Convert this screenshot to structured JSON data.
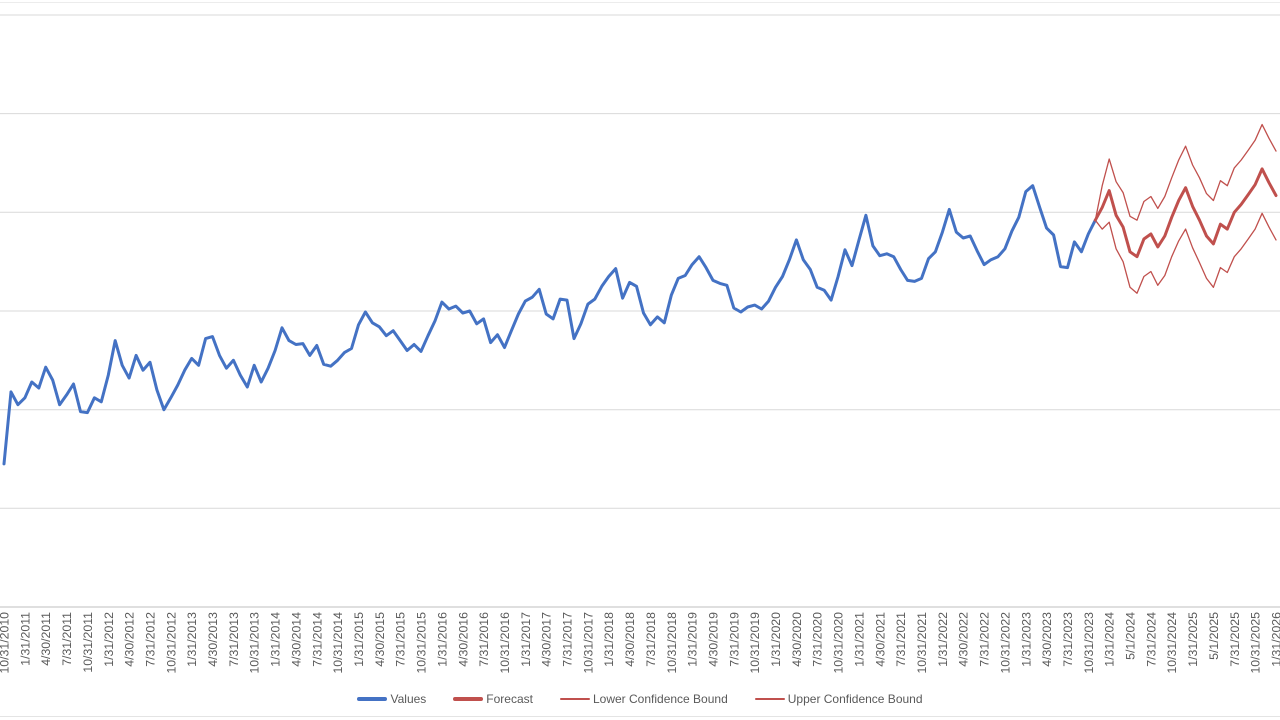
{
  "chart_data": {
    "type": "line",
    "title": "",
    "xlabel": "",
    "ylabel": "",
    "grid": true,
    "legend_position": "bottom",
    "x_axis": {
      "start": "10/31/2010",
      "end": "1/31/2026",
      "frequency": "monthly",
      "points_total": 184,
      "tick_every_n_months": 3,
      "tick_label_rotation_deg": 90,
      "tick_labels": [
        "10/31/2010",
        "1/31/2011",
        "4/30/2011",
        "7/31/2011",
        "10/31/2011",
        "1/31/2012",
        "4/30/2012",
        "7/31/2012",
        "10/31/2012",
        "1/31/2013",
        "4/30/2013",
        "7/31/2013",
        "10/31/2013",
        "1/31/2014",
        "4/30/2014",
        "7/31/2014",
        "10/31/2014",
        "1/31/2015",
        "4/30/2015",
        "7/31/2015",
        "10/31/2015",
        "1/31/2016",
        "4/30/2016",
        "7/31/2016",
        "10/31/2016",
        "1/31/2017",
        "4/30/2017",
        "7/31/2017",
        "10/31/2017",
        "1/31/2018",
        "4/30/2018",
        "7/31/2018",
        "10/31/2018",
        "1/31/2019",
        "4/30/2019",
        "7/31/2019",
        "10/31/2019",
        "1/31/2020",
        "4/30/2020",
        "7/31/2020",
        "10/31/2020",
        "1/31/2021",
        "4/30/2021",
        "7/31/2021",
        "10/31/2021",
        "1/31/2022",
        "4/30/2022",
        "7/31/2022",
        "10/31/2022",
        "1/31/2023",
        "4/30/2023",
        "7/31/2023",
        "10/31/2023",
        "1/31/2024",
        "5/1/2024",
        "7/31/2024",
        "10/31/2024",
        "1/31/2025",
        "5/1/2025",
        "7/31/2025",
        "10/31/2025",
        "1/31/2026"
      ]
    },
    "y_axis": {
      "labels_visible": false,
      "gridline_values": [
        0,
        1,
        2,
        3,
        4,
        5,
        6
      ],
      "ylim": [
        0,
        6.1
      ]
    },
    "series": [
      {
        "name": "Values",
        "color": "#4472C4",
        "width": 3,
        "start_index": 0,
        "values": [
          1.45,
          2.18,
          2.05,
          2.12,
          2.28,
          2.22,
          2.43,
          2.3,
          2.05,
          2.15,
          2.26,
          1.98,
          1.97,
          2.12,
          2.08,
          2.35,
          2.7,
          2.45,
          2.32,
          2.55,
          2.4,
          2.48,
          2.2,
          2.0,
          2.12,
          2.25,
          2.4,
          2.52,
          2.45,
          2.72,
          2.74,
          2.55,
          2.42,
          2.5,
          2.35,
          2.23,
          2.45,
          2.28,
          2.42,
          2.6,
          2.83,
          2.7,
          2.66,
          2.67,
          2.55,
          2.65,
          2.46,
          2.44,
          2.5,
          2.58,
          2.62,
          2.86,
          2.99,
          2.88,
          2.84,
          2.75,
          2.8,
          2.7,
          2.6,
          2.66,
          2.59,
          2.75,
          2.9,
          3.09,
          3.02,
          3.05,
          2.98,
          3.0,
          2.87,
          2.92,
          2.68,
          2.76,
          2.63,
          2.8,
          2.97,
          3.1,
          3.14,
          3.22,
          2.97,
          2.92,
          3.12,
          3.11,
          2.72,
          2.87,
          3.07,
          3.12,
          3.25,
          3.35,
          3.43,
          3.13,
          3.29,
          3.25,
          2.98,
          2.86,
          2.94,
          2.88,
          3.16,
          3.33,
          3.36,
          3.47,
          3.55,
          3.44,
          3.31,
          3.28,
          3.26,
          3.03,
          2.99,
          3.04,
          3.06,
          3.02,
          3.1,
          3.24,
          3.35,
          3.52,
          3.72,
          3.52,
          3.42,
          3.24,
          3.21,
          3.11,
          3.35,
          3.62,
          3.46,
          3.72,
          3.97,
          3.66,
          3.56,
          3.58,
          3.55,
          3.42,
          3.31,
          3.3,
          3.33,
          3.53,
          3.6,
          3.8,
          4.03,
          3.8,
          3.74,
          3.76,
          3.61,
          3.47,
          3.52,
          3.55,
          3.63,
          3.81,
          3.95,
          4.21,
          4.27,
          4.05,
          3.84,
          3.77,
          3.45,
          3.44,
          3.7,
          3.6,
          3.78,
          3.92
        ]
      },
      {
        "name": "Forecast",
        "color": "#C0504D",
        "width": 3,
        "start_index": 157,
        "values": [
          3.92,
          4.05,
          4.22,
          3.97,
          3.85,
          3.6,
          3.55,
          3.73,
          3.78,
          3.65,
          3.76,
          3.95,
          4.12,
          4.25,
          4.06,
          3.92,
          3.76,
          3.68,
          3.88,
          3.83,
          4.0,
          4.08,
          4.18,
          4.28,
          4.44,
          4.3,
          4.17
        ]
      },
      {
        "name": "Lower Confidence Bound",
        "color": "#C0504D",
        "width": 1.3,
        "start_index": 157,
        "values": [
          3.92,
          3.83,
          3.9,
          3.63,
          3.5,
          3.24,
          3.18,
          3.35,
          3.4,
          3.26,
          3.36,
          3.55,
          3.71,
          3.83,
          3.64,
          3.49,
          3.33,
          3.24,
          3.44,
          3.39,
          3.55,
          3.63,
          3.73,
          3.83,
          3.99,
          3.85,
          3.72
        ]
      },
      {
        "name": "Upper Confidence Bound",
        "color": "#C0504D",
        "width": 1.3,
        "start_index": 157,
        "values": [
          3.92,
          4.27,
          4.54,
          4.31,
          4.2,
          3.96,
          3.92,
          4.11,
          4.16,
          4.04,
          4.16,
          4.35,
          4.53,
          4.67,
          4.48,
          4.35,
          4.19,
          4.12,
          4.32,
          4.27,
          4.45,
          4.53,
          4.63,
          4.73,
          4.89,
          4.75,
          4.62
        ]
      }
    ],
    "colors": {
      "values_line": "#4472C4",
      "forecast_line": "#C0504D",
      "gridline": "#D9D9D9",
      "axis_line": "#BFBFBF",
      "label_text": "#595959",
      "background": "#FFFFFF"
    }
  }
}
